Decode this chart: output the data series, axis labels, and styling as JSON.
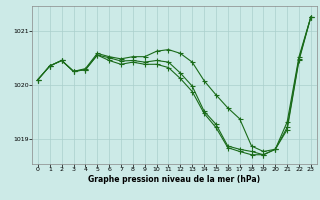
{
  "title": "Graphe pression niveau de la mer (hPa)",
  "bg_color": "#cceae7",
  "grid_color": "#aacfcc",
  "line_color": "#1a6b1a",
  "xlim": [
    -0.5,
    23.5
  ],
  "ylim": [
    1018.55,
    1021.45
  ],
  "yticks": [
    1019,
    1020,
    1021
  ],
  "xticks": [
    0,
    1,
    2,
    3,
    4,
    5,
    6,
    7,
    8,
    9,
    10,
    11,
    12,
    13,
    14,
    15,
    16,
    17,
    18,
    19,
    20,
    21,
    22,
    23
  ],
  "series1": [
    1020.1,
    1020.35,
    1020.45,
    1020.25,
    1020.3,
    1020.58,
    1020.52,
    1020.48,
    1020.52,
    1020.52,
    1020.62,
    1020.65,
    1020.58,
    1020.42,
    1020.08,
    1019.82,
    1019.58,
    1019.38,
    1018.88,
    1018.78,
    1018.82,
    1019.32,
    1020.52,
    1021.25
  ],
  "series2": [
    1020.1,
    1020.35,
    1020.45,
    1020.25,
    1020.28,
    1020.55,
    1020.5,
    1020.44,
    1020.45,
    1020.42,
    1020.45,
    1020.42,
    1020.22,
    1019.98,
    1019.52,
    1019.28,
    1018.88,
    1018.82,
    1018.78,
    1018.72,
    1018.82,
    1019.22,
    1020.48,
    1021.25
  ],
  "series3": [
    1020.1,
    1020.35,
    1020.45,
    1020.25,
    1020.28,
    1020.55,
    1020.45,
    1020.38,
    1020.42,
    1020.38,
    1020.38,
    1020.32,
    1020.12,
    1019.88,
    1019.48,
    1019.22,
    1018.85,
    1018.78,
    1018.72,
    1018.72,
    1018.82,
    1019.18,
    1020.45,
    1021.25
  ]
}
